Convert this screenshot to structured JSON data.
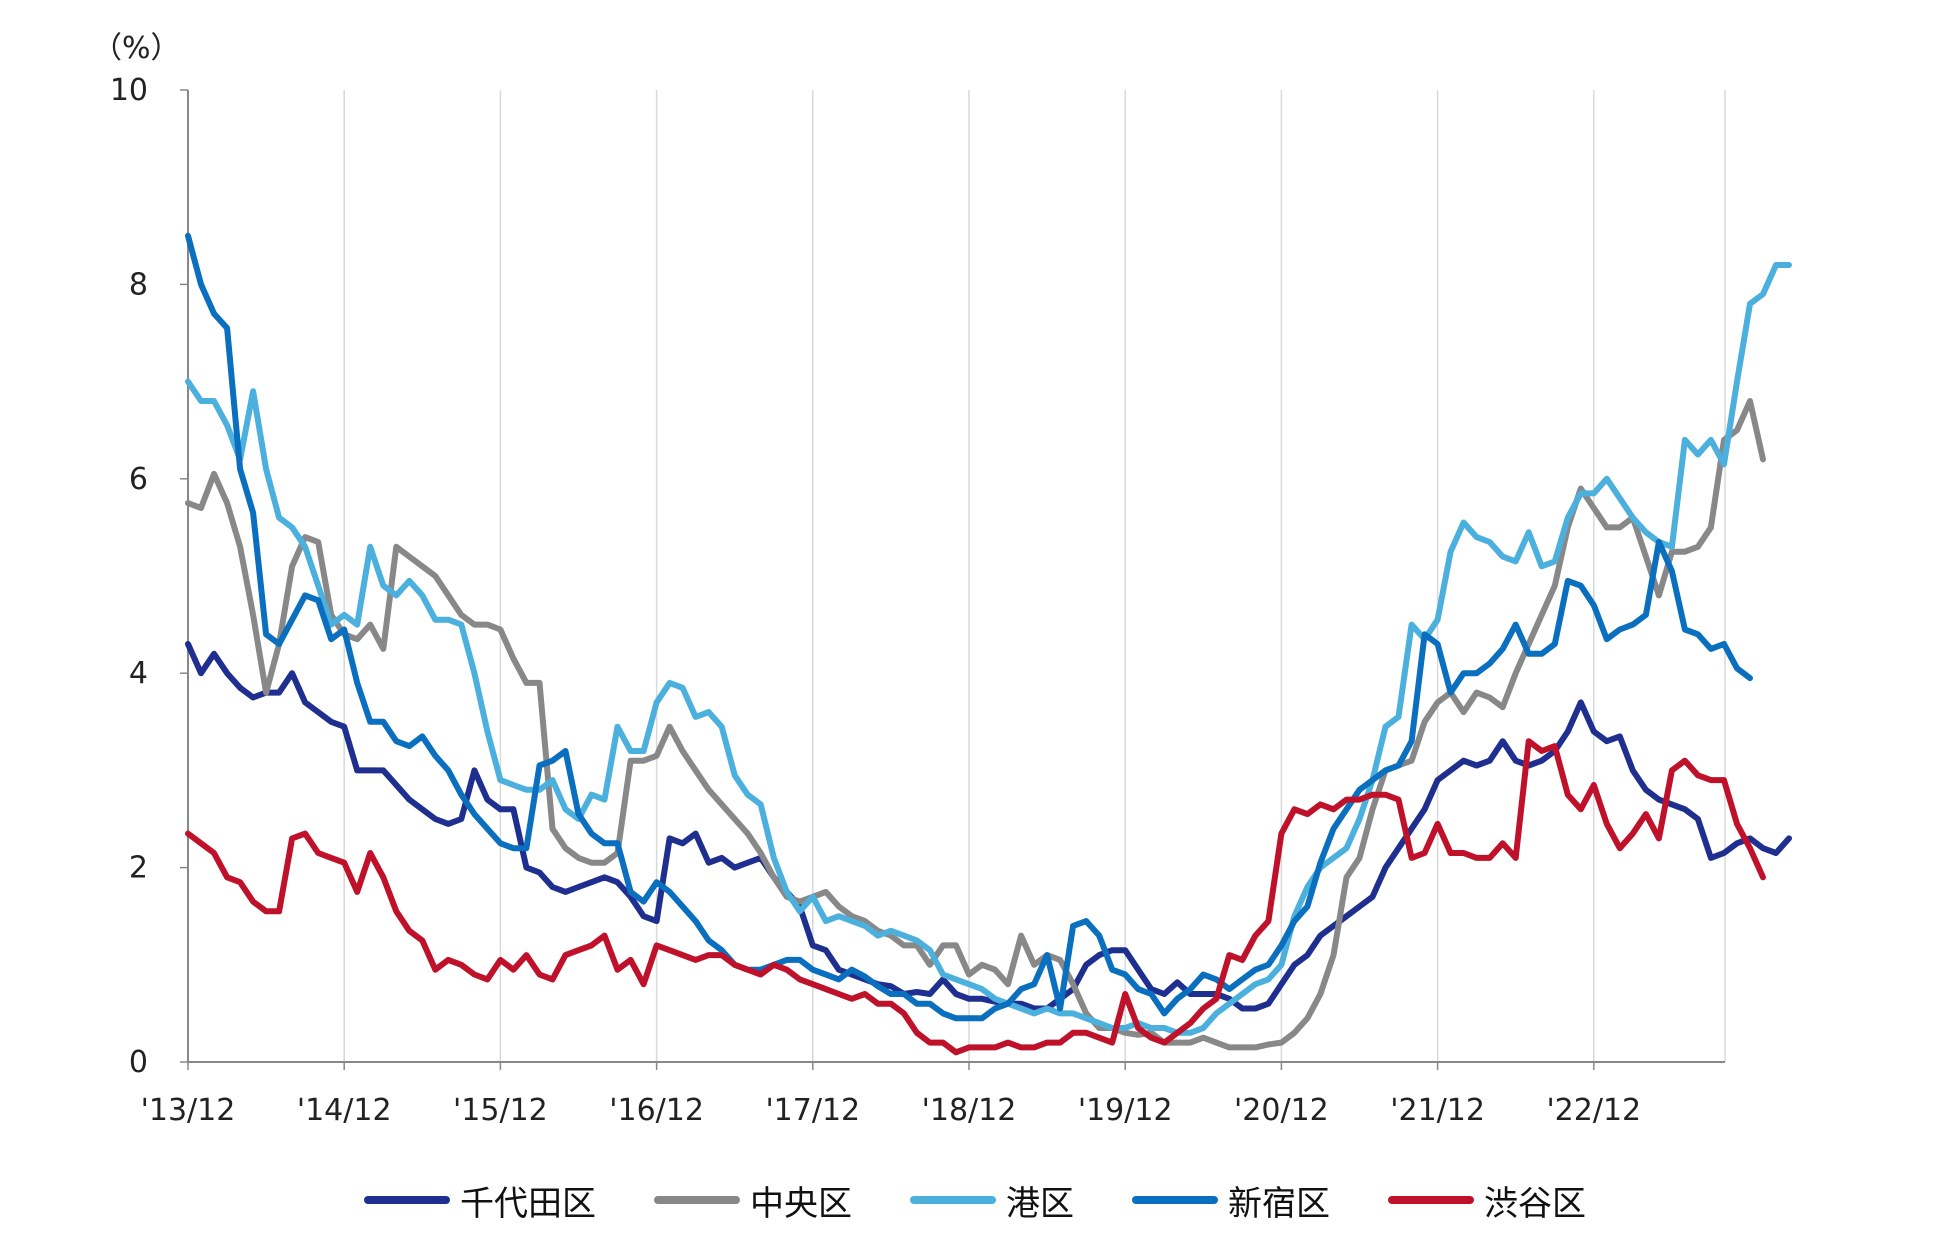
{
  "chart_data": {
    "type": "line",
    "unit_label": "（%）",
    "ylim": [
      0,
      10
    ],
    "y_ticks": [
      "0",
      "2",
      "4",
      "6",
      "8",
      "10"
    ],
    "x_ticks": [
      "'13/12",
      "'14/12",
      "'15/12",
      "'16/12",
      "'17/12",
      "'18/12",
      "'19/12",
      "'20/12",
      "'21/12",
      "'22/12"
    ],
    "x_start": "2013-12",
    "x_end": "2023-09",
    "grid": "vertical",
    "legend_position": "bottom",
    "series": [
      {
        "name": "千代田区",
        "color": "#1f2f8f",
        "values": [
          4.3,
          4.0,
          4.2,
          4.0,
          3.85,
          3.75,
          3.8,
          3.8,
          4.0,
          3.7,
          3.6,
          3.5,
          3.45,
          3.0,
          3.0,
          3.0,
          2.85,
          2.7,
          2.6,
          2.5,
          2.45,
          2.5,
          3.0,
          2.7,
          2.6,
          2.6,
          2.0,
          1.95,
          1.8,
          1.75,
          1.8,
          1.85,
          1.9,
          1.85,
          1.7,
          1.5,
          1.45,
          2.3,
          2.25,
          2.35,
          2.05,
          2.1,
          2.0,
          2.05,
          2.1,
          1.9,
          1.75,
          1.6,
          1.2,
          1.15,
          0.95,
          0.9,
          0.85,
          0.8,
          0.78,
          0.7,
          0.72,
          0.7,
          0.85,
          0.7,
          0.65,
          0.65,
          0.62,
          0.6,
          0.6,
          0.55,
          0.55,
          0.65,
          0.75,
          1.0,
          1.1,
          1.15,
          1.15,
          0.95,
          0.75,
          0.7,
          0.82,
          0.7,
          0.7,
          0.7,
          0.65,
          0.55,
          0.55,
          0.6,
          0.8,
          1.0,
          1.1,
          1.3,
          1.4,
          1.5,
          1.6,
          1.7,
          2.0,
          2.2,
          2.4,
          2.6,
          2.9,
          3.0,
          3.1,
          3.05,
          3.1,
          3.3,
          3.1,
          3.05,
          3.1,
          3.2,
          3.4,
          3.7,
          3.4,
          3.3,
          3.35,
          3.0,
          2.8,
          2.7,
          2.65,
          2.6,
          2.5,
          2.1,
          2.15,
          2.25,
          2.3,
          2.2,
          2.15,
          2.3
        ]
      },
      {
        "name": "中央区",
        "color": "#888888",
        "values": [
          5.75,
          5.7,
          6.05,
          5.75,
          5.3,
          4.6,
          3.8,
          4.3,
          5.1,
          5.4,
          5.35,
          4.6,
          4.4,
          4.35,
          4.5,
          4.25,
          5.3,
          5.2,
          5.1,
          5.0,
          4.8,
          4.6,
          4.5,
          4.5,
          4.45,
          4.15,
          3.9,
          3.9,
          2.4,
          2.2,
          2.1,
          2.05,
          2.05,
          2.15,
          3.1,
          3.1,
          3.15,
          3.45,
          3.2,
          3.0,
          2.8,
          2.65,
          2.5,
          2.35,
          2.15,
          1.9,
          1.7,
          1.65,
          1.7,
          1.75,
          1.6,
          1.5,
          1.45,
          1.35,
          1.3,
          1.2,
          1.2,
          1.0,
          1.2,
          1.2,
          0.9,
          1.0,
          0.95,
          0.8,
          1.3,
          1.0,
          1.1,
          1.05,
          0.8,
          0.5,
          0.35,
          0.35,
          0.3,
          0.28,
          0.3,
          0.2,
          0.2,
          0.2,
          0.25,
          0.2,
          0.15,
          0.15,
          0.15,
          0.18,
          0.2,
          0.3,
          0.45,
          0.7,
          1.1,
          1.9,
          2.1,
          2.6,
          3.0,
          3.05,
          3.1,
          3.5,
          3.7,
          3.8,
          3.6,
          3.8,
          3.75,
          3.65,
          4.0,
          4.3,
          4.6,
          4.9,
          5.5,
          5.9,
          5.7,
          5.5,
          5.5,
          5.6,
          5.2,
          4.8,
          5.25,
          5.25,
          5.3,
          5.5,
          6.4,
          6.5,
          6.8,
          6.2
        ]
      },
      {
        "name": "港区",
        "color": "#4bb0dd",
        "values": [
          7.0,
          6.8,
          6.8,
          6.55,
          6.2,
          6.9,
          6.1,
          5.6,
          5.5,
          5.3,
          4.9,
          4.5,
          4.6,
          4.5,
          5.3,
          4.9,
          4.8,
          4.95,
          4.8,
          4.55,
          4.55,
          4.5,
          4.0,
          3.4,
          2.9,
          2.85,
          2.8,
          2.8,
          2.9,
          2.6,
          2.5,
          2.75,
          2.7,
          3.45,
          3.2,
          3.2,
          3.7,
          3.9,
          3.85,
          3.55,
          3.6,
          3.45,
          2.95,
          2.75,
          2.65,
          2.1,
          1.75,
          1.55,
          1.7,
          1.45,
          1.5,
          1.45,
          1.4,
          1.3,
          1.35,
          1.3,
          1.25,
          1.15,
          0.9,
          0.85,
          0.8,
          0.75,
          0.65,
          0.6,
          0.55,
          0.5,
          0.55,
          0.5,
          0.5,
          0.45,
          0.4,
          0.35,
          0.35,
          0.4,
          0.35,
          0.35,
          0.3,
          0.3,
          0.35,
          0.5,
          0.6,
          0.7,
          0.8,
          0.85,
          1.0,
          1.5,
          1.8,
          2.0,
          2.1,
          2.2,
          2.5,
          2.9,
          3.45,
          3.55,
          4.5,
          4.35,
          4.55,
          5.25,
          5.55,
          5.4,
          5.35,
          5.2,
          5.15,
          5.45,
          5.1,
          5.15,
          5.6,
          5.85,
          5.85,
          6.0,
          5.8,
          5.6,
          5.45,
          5.35,
          5.3,
          6.4,
          6.25,
          6.4,
          6.15,
          7.0,
          7.8,
          7.9,
          8.2,
          8.2
        ]
      },
      {
        "name": "新宿区",
        "color": "#0a6fbe",
        "values": [
          8.5,
          8.0,
          7.7,
          7.55,
          6.1,
          5.65,
          4.4,
          4.3,
          4.55,
          4.8,
          4.75,
          4.35,
          4.45,
          3.9,
          3.5,
          3.5,
          3.3,
          3.25,
          3.35,
          3.15,
          3.0,
          2.75,
          2.55,
          2.4,
          2.25,
          2.2,
          2.2,
          3.05,
          3.1,
          3.2,
          2.55,
          2.35,
          2.25,
          2.25,
          1.75,
          1.65,
          1.85,
          1.75,
          1.6,
          1.45,
          1.25,
          1.15,
          1.0,
          0.95,
          0.95,
          1.0,
          1.05,
          1.05,
          0.95,
          0.9,
          0.85,
          0.95,
          0.88,
          0.78,
          0.7,
          0.7,
          0.6,
          0.6,
          0.5,
          0.45,
          0.45,
          0.45,
          0.55,
          0.6,
          0.75,
          0.8,
          1.1,
          0.55,
          1.4,
          1.45,
          1.3,
          0.95,
          0.9,
          0.75,
          0.7,
          0.5,
          0.65,
          0.75,
          0.9,
          0.85,
          0.75,
          0.85,
          0.95,
          1.0,
          1.2,
          1.45,
          1.6,
          2.05,
          2.4,
          2.6,
          2.8,
          2.9,
          3.0,
          3.05,
          3.3,
          4.4,
          4.3,
          3.8,
          4.0,
          4.0,
          4.1,
          4.25,
          4.5,
          4.2,
          4.2,
          4.3,
          4.95,
          4.9,
          4.7,
          4.35,
          4.45,
          4.5,
          4.6,
          5.35,
          5.05,
          4.45,
          4.4,
          4.25,
          4.3,
          4.05,
          3.95
        ]
      },
      {
        "name": "渋谷区",
        "color": "#c0112b",
        "values": [
          2.35,
          2.25,
          2.15,
          1.9,
          1.85,
          1.65,
          1.55,
          1.55,
          2.3,
          2.35,
          2.15,
          2.1,
          2.05,
          1.75,
          2.15,
          1.9,
          1.55,
          1.35,
          1.25,
          0.95,
          1.05,
          1.0,
          0.9,
          0.85,
          1.05,
          0.95,
          1.1,
          0.9,
          0.85,
          1.1,
          1.15,
          1.2,
          1.3,
          0.95,
          1.05,
          0.8,
          1.2,
          1.15,
          1.1,
          1.05,
          1.1,
          1.1,
          1.0,
          0.95,
          0.9,
          1.0,
          0.95,
          0.85,
          0.8,
          0.75,
          0.7,
          0.65,
          0.7,
          0.6,
          0.6,
          0.5,
          0.3,
          0.2,
          0.2,
          0.1,
          0.15,
          0.15,
          0.15,
          0.2,
          0.15,
          0.15,
          0.2,
          0.2,
          0.3,
          0.3,
          0.25,
          0.2,
          0.7,
          0.35,
          0.25,
          0.2,
          0.3,
          0.4,
          0.55,
          0.65,
          1.1,
          1.05,
          1.3,
          1.45,
          2.35,
          2.6,
          2.55,
          2.65,
          2.6,
          2.7,
          2.7,
          2.75,
          2.75,
          2.7,
          2.1,
          2.15,
          2.45,
          2.15,
          2.15,
          2.1,
          2.1,
          2.25,
          2.1,
          3.3,
          3.2,
          3.25,
          2.75,
          2.6,
          2.85,
          2.45,
          2.2,
          2.35,
          2.55,
          2.3,
          3.0,
          3.1,
          2.95,
          2.9,
          2.9,
          2.45,
          2.2,
          1.9
        ]
      }
    ]
  }
}
